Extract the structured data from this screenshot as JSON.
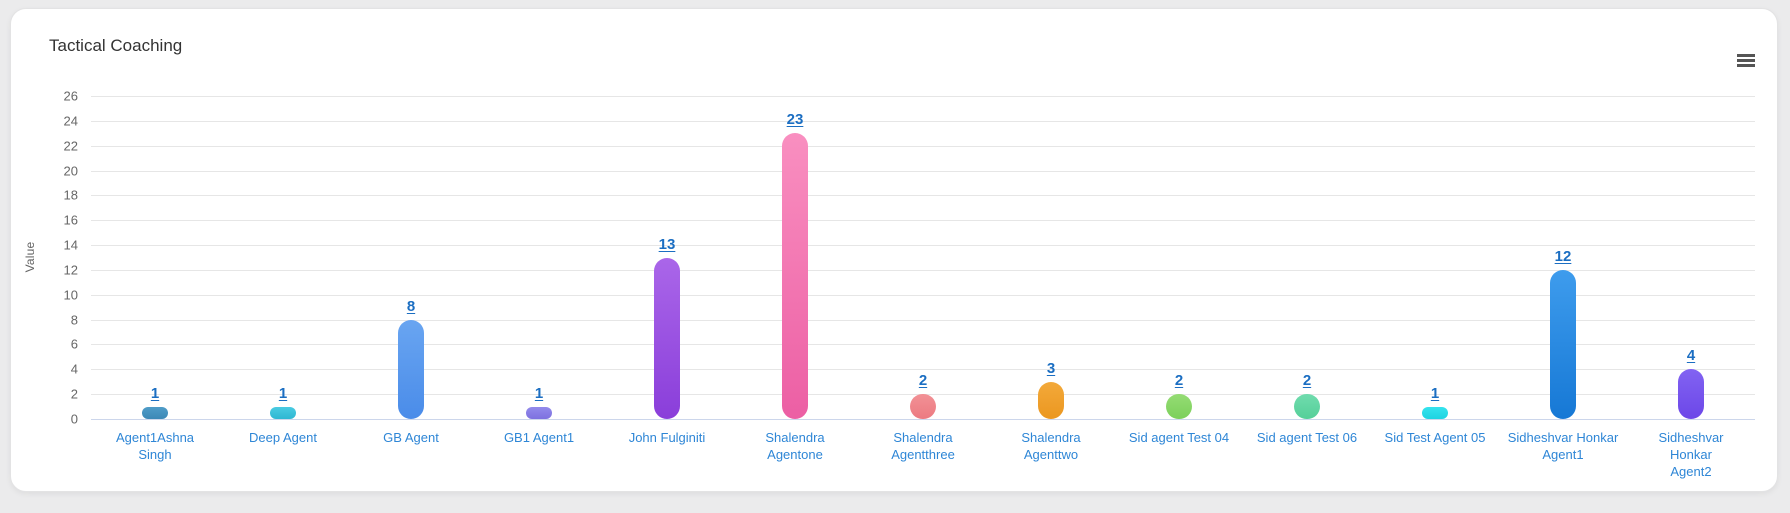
{
  "card": {
    "title": "Tactical Coaching"
  },
  "menu": {
    "icon": "hamburger-icon"
  },
  "chart_data": {
    "type": "bar",
    "title": "Tactical Coaching",
    "xlabel": "",
    "ylabel": "Value",
    "ylim": [
      0,
      26
    ],
    "ytick_step": 2,
    "grid": true,
    "legend": "none",
    "categories": [
      "Agent1Ashna Singh",
      "Deep Agent",
      "GB Agent",
      "GB1 Agent1",
      "John Fulginiti",
      "Shalendra Agentone",
      "Shalendra Agentthree",
      "Shalendra Agenttwo",
      "Sid agent Test 04",
      "Sid agent Test 06",
      "Sid Test Agent 05",
      "Sidheshvar Honkar Agent1",
      "Sidheshvar Honkar Agent2"
    ],
    "categories_display": [
      "Agent1Ashna\nSingh",
      "Deep Agent",
      "GB Agent",
      "GB1 Agent1",
      "John Fulginiti",
      "Shalendra\nAgentone",
      "Shalendra\nAgentthree",
      "Shalendra\nAgenttwo",
      "Sid agent Test 04",
      "Sid agent Test 06",
      "Sid Test Agent 05",
      "Sidheshvar Honkar\nAgent1",
      "Sidheshvar Honkar\nAgent2"
    ],
    "values": [
      1,
      1,
      8,
      1,
      13,
      23,
      2,
      3,
      2,
      2,
      1,
      12,
      4
    ],
    "bar_colors": [
      {
        "top": "#4f9cc8",
        "bottom": "#3c88b6"
      },
      {
        "top": "#49cbe2",
        "bottom": "#2eb7d2"
      },
      {
        "top": "#69a5f1",
        "bottom": "#4a8ce9"
      },
      {
        "top": "#938aeb",
        "bottom": "#7d71e0"
      },
      {
        "top": "#aa66e9",
        "bottom": "#8a3eda"
      },
      {
        "top": "#f98fc0",
        "bottom": "#ec5fa4"
      },
      {
        "top": "#f29196",
        "bottom": "#ec7a81"
      },
      {
        "top": "#f3a93a",
        "bottom": "#eb9720"
      },
      {
        "top": "#95dc74",
        "bottom": "#7cd05b"
      },
      {
        "top": "#70dcae",
        "bottom": "#55cf99"
      },
      {
        "top": "#35e3ee",
        "bottom": "#1ed3e1"
      },
      {
        "top": "#3e9ced",
        "bottom": "#1678d5"
      },
      {
        "top": "#8263f2",
        "bottom": "#6c47e8"
      }
    ],
    "colors": {
      "data_label": "#1b6ec2",
      "x_label": "#2e86d6",
      "y_label": "#666666",
      "axis_title": "#666666",
      "chart_title": "#333333",
      "gridline": "#e6e6e6",
      "axis_line": "#ccd6eb",
      "menu_icon": "#555555",
      "card_bg": "#ffffff",
      "page_bg": "#ebebec"
    }
  }
}
